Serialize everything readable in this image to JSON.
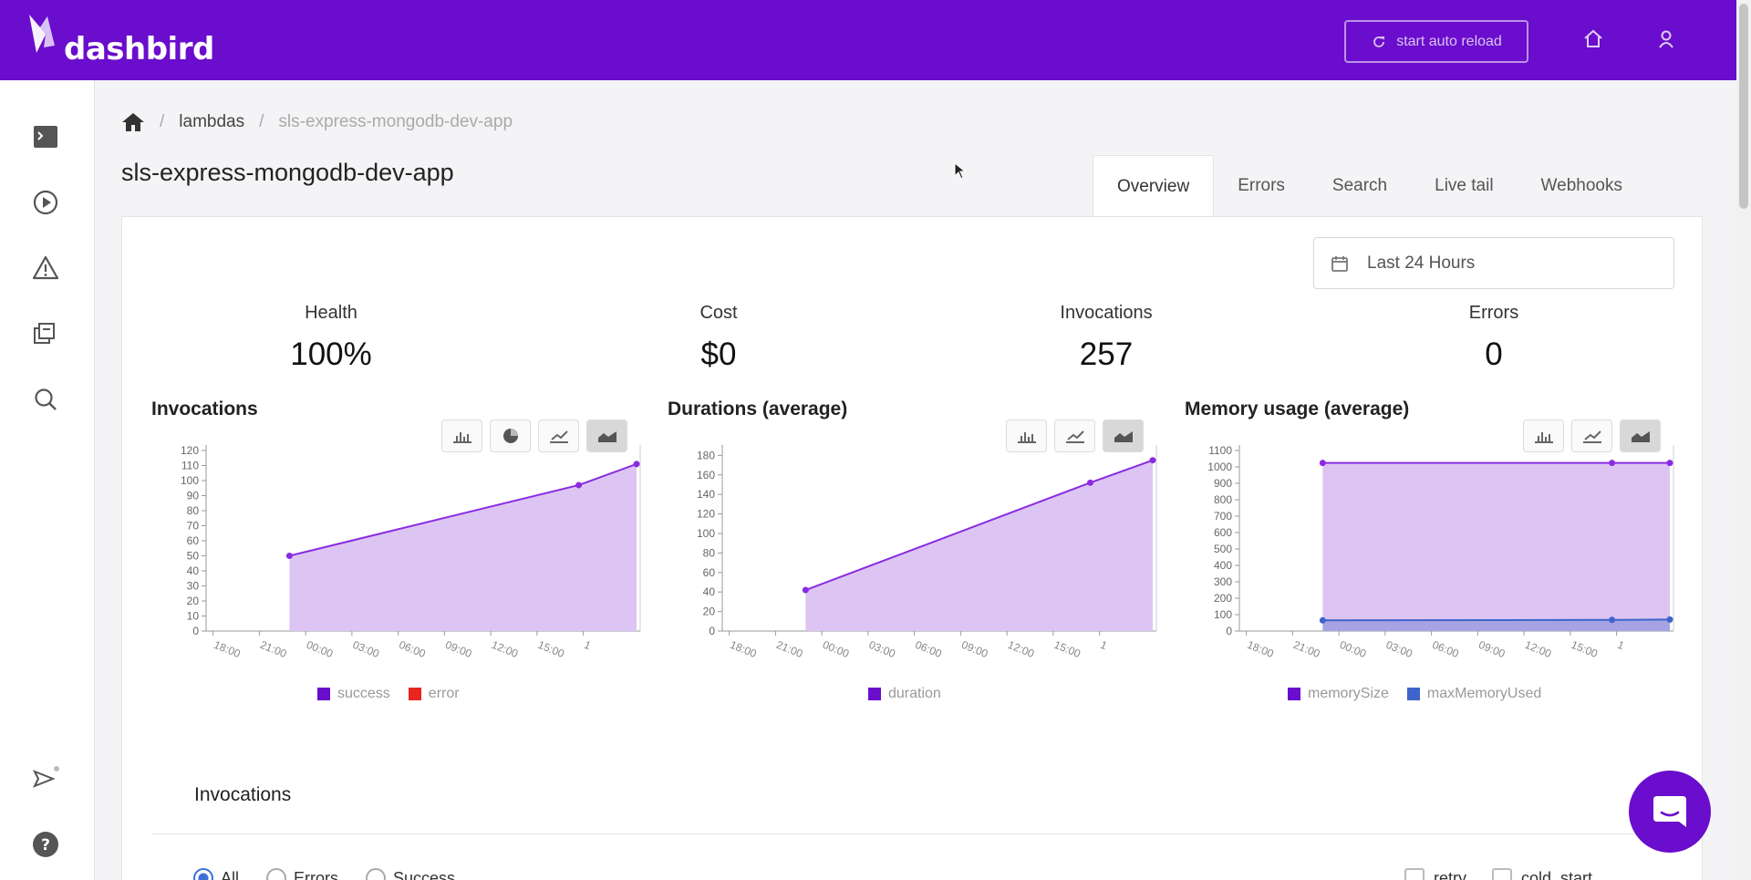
{
  "app": {
    "name": "dashbird",
    "reload_label": "start auto reload"
  },
  "breadcrumb": {
    "root": "lambdas",
    "current": "sls-express-mongodb-dev-app"
  },
  "page_title": "sls-express-mongodb-dev-app",
  "tabs": [
    {
      "label": "Overview",
      "active": true
    },
    {
      "label": "Errors",
      "active": false
    },
    {
      "label": "Search",
      "active": false
    },
    {
      "label": "Live tail",
      "active": false
    },
    {
      "label": "Webhooks",
      "active": false
    }
  ],
  "date_range": "Last 24 Hours",
  "stats": [
    {
      "label": "Health",
      "value": "100%"
    },
    {
      "label": "Cost",
      "value": "$0"
    },
    {
      "label": "Invocations",
      "value": "257"
    },
    {
      "label": "Errors",
      "value": "0"
    }
  ],
  "charts": {
    "invocations": {
      "title": "Invocations",
      "legend": [
        "success",
        "error"
      ]
    },
    "durations": {
      "title": "Durations (average)",
      "legend": [
        "duration"
      ]
    },
    "memory": {
      "title": "Memory usage (average)",
      "legend": [
        "memorySize",
        "maxMemoryUsed"
      ]
    }
  },
  "colors": {
    "brand": "#6a0dcc",
    "area": "#dcc5f2",
    "line": "#8a2be2",
    "error": "#e8251f",
    "max_memory": "#3f64c9"
  },
  "chart_data": [
    {
      "type": "area",
      "title": "Invocations",
      "x": [
        "18:00",
        "21:00",
        "00:00",
        "03:00",
        "06:00",
        "09:00",
        "12:00",
        "15:00"
      ],
      "x_tail_label": "1",
      "yticks": [
        0,
        10,
        20,
        30,
        40,
        50,
        60,
        70,
        80,
        90,
        100,
        110,
        120
      ],
      "ylim": [
        0,
        120
      ],
      "series": [
        {
          "name": "success",
          "points": [
            [
              1.8,
              50
            ],
            [
              8.05,
              97
            ],
            [
              9.3,
              111
            ]
          ]
        },
        {
          "name": "error",
          "points": []
        }
      ]
    },
    {
      "type": "area",
      "title": "Durations (average)",
      "x": [
        "18:00",
        "21:00",
        "00:00",
        "03:00",
        "06:00",
        "09:00",
        "12:00",
        "15:00"
      ],
      "x_tail_label": "1",
      "yticks": [
        0,
        20,
        40,
        60,
        80,
        100,
        120,
        140,
        160,
        180
      ],
      "ylim": [
        0,
        185
      ],
      "series": [
        {
          "name": "duration",
          "points": [
            [
              1.8,
              42
            ],
            [
              7.95,
              152
            ],
            [
              9.3,
              175
            ]
          ]
        }
      ]
    },
    {
      "type": "area",
      "title": "Memory usage (average)",
      "x": [
        "18:00",
        "21:00",
        "00:00",
        "03:00",
        "06:00",
        "09:00",
        "12:00",
        "15:00"
      ],
      "x_tail_label": "1",
      "yticks": [
        0,
        100,
        200,
        300,
        400,
        500,
        600,
        700,
        800,
        900,
        1000,
        1100
      ],
      "ylim": [
        0,
        1100
      ],
      "series": [
        {
          "name": "memorySize",
          "points": [
            [
              1.8,
              1024
            ],
            [
              8.05,
              1024
            ],
            [
              9.3,
              1024
            ]
          ]
        },
        {
          "name": "maxMemoryUsed",
          "points": [
            [
              1.8,
              65
            ],
            [
              8.05,
              68
            ],
            [
              9.3,
              70
            ]
          ]
        }
      ]
    }
  ],
  "invocations_section": {
    "title": "Invocations",
    "filters": [
      {
        "label": "All",
        "selected": true
      },
      {
        "label": "Errors",
        "selected": false
      },
      {
        "label": "Success",
        "selected": false
      }
    ],
    "checks": [
      {
        "label": "retry"
      },
      {
        "label": "cold_start"
      }
    ]
  }
}
